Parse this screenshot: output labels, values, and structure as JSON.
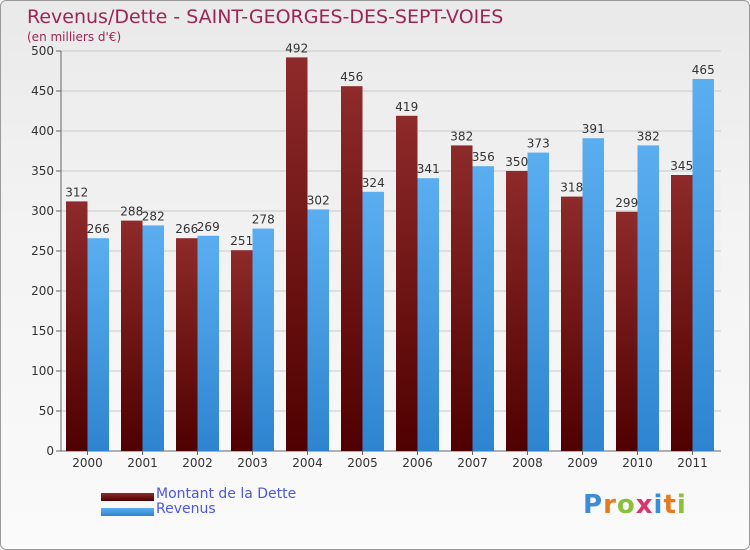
{
  "chart_data": {
    "type": "bar",
    "title": "Revenus/Dette - SAINT-GEORGES-DES-SEPT-VOIES",
    "subtitle": "(en milliers d'€)",
    "xlabel": "",
    "ylabel": "",
    "ylim": [
      0,
      500
    ],
    "yticks": [
      0,
      50,
      100,
      150,
      200,
      250,
      300,
      350,
      400,
      450,
      500
    ],
    "grid": true,
    "categories": [
      "2000",
      "2001",
      "2002",
      "2003",
      "2004",
      "2005",
      "2006",
      "2007",
      "2008",
      "2009",
      "2010",
      "2011"
    ],
    "series": [
      {
        "name": "Montant de la Dette",
        "color": "#8b1c1c",
        "values": [
          312,
          288,
          266,
          251,
          492,
          456,
          419,
          382,
          350,
          318,
          299,
          345
        ]
      },
      {
        "name": "Revenus",
        "color": "#4da3e6",
        "values": [
          266,
          282,
          269,
          278,
          302,
          324,
          341,
          356,
          373,
          391,
          382,
          465
        ]
      }
    ],
    "legend": "bottom-left"
  },
  "brand": {
    "letters": [
      "P",
      "r",
      "o",
      "x",
      "i",
      "t",
      "i"
    ],
    "colors": [
      "#3a8bd8",
      "#e87a1e",
      "#8ac03a",
      "#d8356e",
      "#3a8bd8",
      "#e87a1e",
      "#8ac03a"
    ]
  }
}
